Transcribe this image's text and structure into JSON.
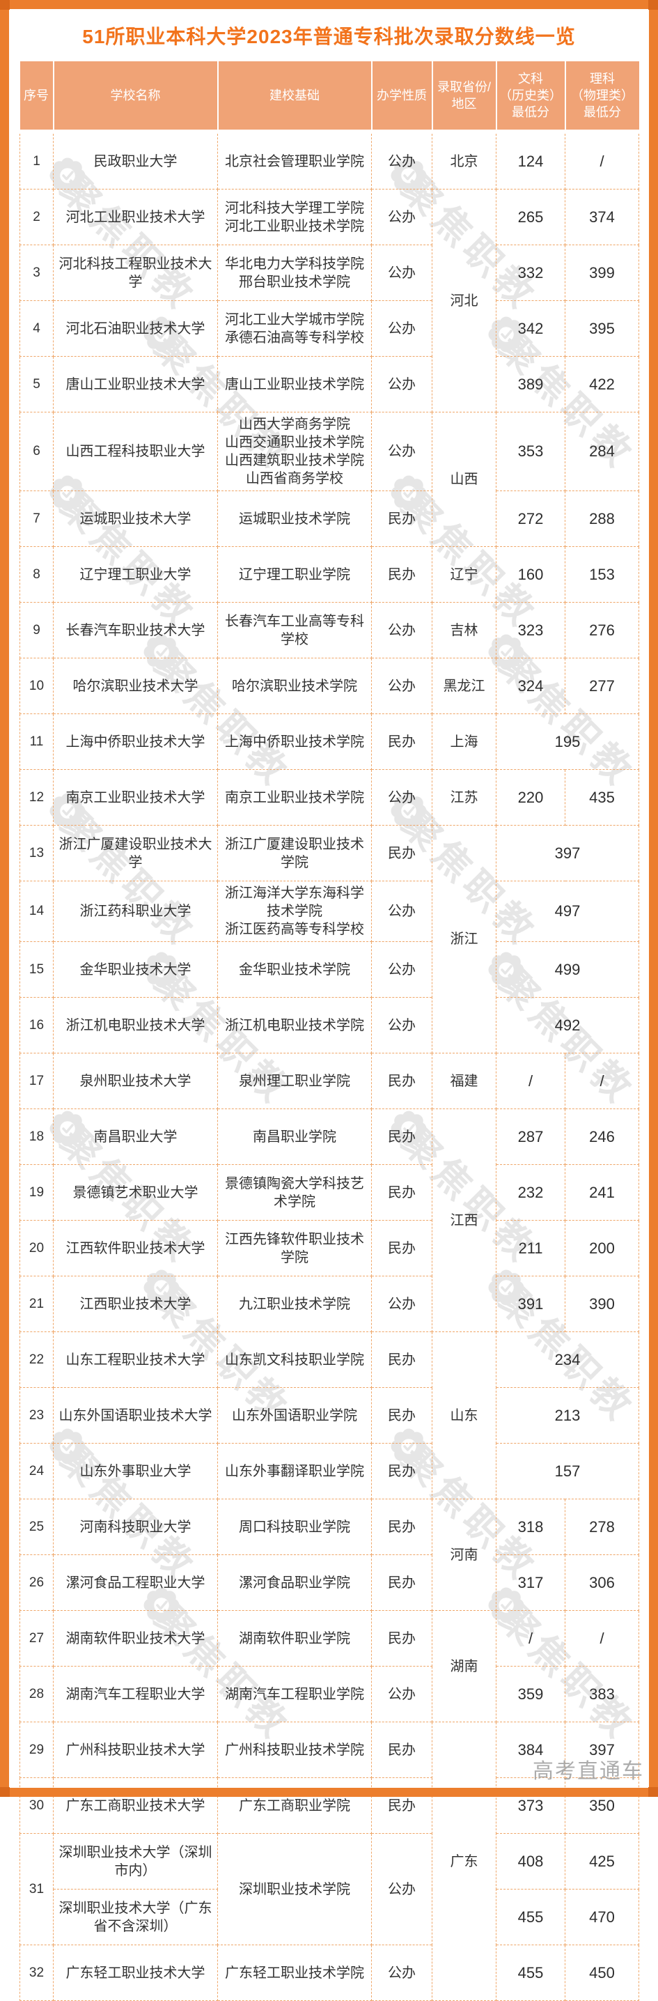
{
  "page": {
    "title": "51所职业本科大学2023年普通专科批次录取分数线一览",
    "watermark_text": "聚焦职教",
    "corner_watermark": "高考直通车"
  },
  "colors": {
    "frame_orange": "#ec7e2d",
    "header_bg": "#f0a376",
    "title_orange": "#f2731c",
    "dashed_border": "#efa668",
    "body_text": "#333333",
    "watermark_gray": "#c9c9c9"
  },
  "table": {
    "headers": [
      "序号",
      "学校名称",
      "建校基础",
      "办学性质",
      "录取省份/\n地区",
      "文科\n（历史类）\n最低分",
      "理科\n（物理类）\n最低分"
    ],
    "rows": [
      [
        {
          "k": "no",
          "t": "1"
        },
        {
          "k": "name",
          "t": "民政职业大学"
        },
        {
          "k": "base",
          "t": "北京社会管理职业学院"
        },
        {
          "k": "type",
          "t": "公办"
        },
        {
          "k": "prov",
          "t": "北京"
        },
        {
          "k": "wen",
          "t": "124"
        },
        {
          "k": "li",
          "t": "/"
        }
      ],
      [
        {
          "k": "no",
          "t": "2"
        },
        {
          "k": "name",
          "t": "河北工业职业技术大学"
        },
        {
          "k": "base",
          "t": "河北科技大学理工学院\n河北工业职业技术学院"
        },
        {
          "k": "type",
          "t": "公办"
        },
        {
          "k": "prov",
          "t": "河北",
          "rs": 4
        },
        {
          "k": "wen",
          "t": "265"
        },
        {
          "k": "li",
          "t": "374"
        }
      ],
      [
        {
          "k": "no",
          "t": "3"
        },
        {
          "k": "name",
          "t": "河北科技工程职业技术大学"
        },
        {
          "k": "base",
          "t": "华北电力大学科技学院\n邢台职业技术学院"
        },
        {
          "k": "type",
          "t": "公办"
        },
        {
          "k": "wen",
          "t": "332"
        },
        {
          "k": "li",
          "t": "399"
        }
      ],
      [
        {
          "k": "no",
          "t": "4"
        },
        {
          "k": "name",
          "t": "河北石油职业技术大学"
        },
        {
          "k": "base",
          "t": "河北工业大学城市学院\n承德石油高等专科学校"
        },
        {
          "k": "type",
          "t": "公办"
        },
        {
          "k": "wen",
          "t": "342"
        },
        {
          "k": "li",
          "t": "395"
        }
      ],
      [
        {
          "k": "no",
          "t": "5"
        },
        {
          "k": "name",
          "t": "唐山工业职业技术大学"
        },
        {
          "k": "base",
          "t": "唐山工业职业技术学院"
        },
        {
          "k": "type",
          "t": "公办"
        },
        {
          "k": "wen",
          "t": "389"
        },
        {
          "k": "li",
          "t": "422"
        }
      ],
      [
        {
          "k": "no",
          "t": "6"
        },
        {
          "k": "name",
          "t": "山西工程科技职业大学"
        },
        {
          "k": "base",
          "t": "山西大学商务学院\n山西交通职业技术学院\n山西建筑职业技术学院\n山西省商务学校"
        },
        {
          "k": "type",
          "t": "公办"
        },
        {
          "k": "prov",
          "t": "山西",
          "rs": 2
        },
        {
          "k": "wen",
          "t": "353"
        },
        {
          "k": "li",
          "t": "284"
        }
      ],
      [
        {
          "k": "no",
          "t": "7"
        },
        {
          "k": "name",
          "t": "运城职业技术大学"
        },
        {
          "k": "base",
          "t": "运城职业技术学院"
        },
        {
          "k": "type",
          "t": "民办"
        },
        {
          "k": "wen",
          "t": "272"
        },
        {
          "k": "li",
          "t": "288"
        }
      ],
      [
        {
          "k": "no",
          "t": "8"
        },
        {
          "k": "name",
          "t": "辽宁理工职业大学"
        },
        {
          "k": "base",
          "t": "辽宁理工职业学院"
        },
        {
          "k": "type",
          "t": "民办"
        },
        {
          "k": "prov",
          "t": "辽宁"
        },
        {
          "k": "wen",
          "t": "160"
        },
        {
          "k": "li",
          "t": "153"
        }
      ],
      [
        {
          "k": "no",
          "t": "9"
        },
        {
          "k": "name",
          "t": "长春汽车职业技术大学"
        },
        {
          "k": "base",
          "t": "长春汽车工业高等专科学校"
        },
        {
          "k": "type",
          "t": "公办"
        },
        {
          "k": "prov",
          "t": "吉林"
        },
        {
          "k": "wen",
          "t": "323"
        },
        {
          "k": "li",
          "t": "276"
        }
      ],
      [
        {
          "k": "no",
          "t": "10"
        },
        {
          "k": "name",
          "t": "哈尔滨职业技术大学"
        },
        {
          "k": "base",
          "t": "哈尔滨职业技术学院"
        },
        {
          "k": "type",
          "t": "公办"
        },
        {
          "k": "prov",
          "t": "黑龙江"
        },
        {
          "k": "wen",
          "t": "324"
        },
        {
          "k": "li",
          "t": "277"
        }
      ],
      [
        {
          "k": "no",
          "t": "11"
        },
        {
          "k": "name",
          "t": "上海中侨职业技术大学"
        },
        {
          "k": "base",
          "t": "上海中侨职业技术学院"
        },
        {
          "k": "type",
          "t": "民办"
        },
        {
          "k": "prov",
          "t": "上海"
        },
        {
          "k": "score",
          "t": "195",
          "cs": 2
        }
      ],
      [
        {
          "k": "no",
          "t": "12"
        },
        {
          "k": "name",
          "t": "南京工业职业技术大学"
        },
        {
          "k": "base",
          "t": "南京工业职业技术学院"
        },
        {
          "k": "type",
          "t": "公办"
        },
        {
          "k": "prov",
          "t": "江苏"
        },
        {
          "k": "wen",
          "t": "220"
        },
        {
          "k": "li",
          "t": "435"
        }
      ],
      [
        {
          "k": "no",
          "t": "13"
        },
        {
          "k": "name",
          "t": "浙江广厦建设职业技术大学"
        },
        {
          "k": "base",
          "t": "浙江广厦建设职业技术学院"
        },
        {
          "k": "type",
          "t": "民办"
        },
        {
          "k": "prov",
          "t": "浙江",
          "rs": 4
        },
        {
          "k": "score",
          "t": "397",
          "cs": 2
        }
      ],
      [
        {
          "k": "no",
          "t": "14"
        },
        {
          "k": "name",
          "t": "浙江药科职业大学"
        },
        {
          "k": "base",
          "t": "浙江海洋大学东海科学技术学院\n浙江医药高等专科学校"
        },
        {
          "k": "type",
          "t": "公办"
        },
        {
          "k": "score",
          "t": "497",
          "cs": 2
        }
      ],
      [
        {
          "k": "no",
          "t": "15"
        },
        {
          "k": "name",
          "t": "金华职业技术大学"
        },
        {
          "k": "base",
          "t": "金华职业技术学院"
        },
        {
          "k": "type",
          "t": "公办"
        },
        {
          "k": "score",
          "t": "499",
          "cs": 2
        }
      ],
      [
        {
          "k": "no",
          "t": "16"
        },
        {
          "k": "name",
          "t": "浙江机电职业技术大学"
        },
        {
          "k": "base",
          "t": "浙江机电职业技术学院"
        },
        {
          "k": "type",
          "t": "公办"
        },
        {
          "k": "score",
          "t": "492",
          "cs": 2
        }
      ],
      [
        {
          "k": "no",
          "t": "17"
        },
        {
          "k": "name",
          "t": "泉州职业技术大学"
        },
        {
          "k": "base",
          "t": "泉州理工职业学院"
        },
        {
          "k": "type",
          "t": "民办"
        },
        {
          "k": "prov",
          "t": "福建"
        },
        {
          "k": "wen",
          "t": "/"
        },
        {
          "k": "li",
          "t": "/"
        }
      ],
      [
        {
          "k": "no",
          "t": "18"
        },
        {
          "k": "name",
          "t": "南昌职业大学"
        },
        {
          "k": "base",
          "t": "南昌职业学院"
        },
        {
          "k": "type",
          "t": "民办"
        },
        {
          "k": "prov",
          "t": "江西",
          "rs": 4
        },
        {
          "k": "wen",
          "t": "287"
        },
        {
          "k": "li",
          "t": "246"
        }
      ],
      [
        {
          "k": "no",
          "t": "19"
        },
        {
          "k": "name",
          "t": "景德镇艺术职业大学"
        },
        {
          "k": "base",
          "t": "景德镇陶瓷大学科技艺术学院"
        },
        {
          "k": "type",
          "t": "民办"
        },
        {
          "k": "wen",
          "t": "232"
        },
        {
          "k": "li",
          "t": "241"
        }
      ],
      [
        {
          "k": "no",
          "t": "20"
        },
        {
          "k": "name",
          "t": "江西软件职业技术大学"
        },
        {
          "k": "base",
          "t": "江西先锋软件职业技术学院"
        },
        {
          "k": "type",
          "t": "民办"
        },
        {
          "k": "wen",
          "t": "211"
        },
        {
          "k": "li",
          "t": "200"
        }
      ],
      [
        {
          "k": "no",
          "t": "21"
        },
        {
          "k": "name",
          "t": "江西职业技术大学"
        },
        {
          "k": "base",
          "t": "九江职业技术学院"
        },
        {
          "k": "type",
          "t": "公办"
        },
        {
          "k": "wen",
          "t": "391"
        },
        {
          "k": "li",
          "t": "390"
        }
      ],
      [
        {
          "k": "no",
          "t": "22"
        },
        {
          "k": "name",
          "t": "山东工程职业技术大学"
        },
        {
          "k": "base",
          "t": "山东凯文科技职业学院"
        },
        {
          "k": "type",
          "t": "民办"
        },
        {
          "k": "prov",
          "t": "山东",
          "rs": 3
        },
        {
          "k": "score",
          "t": "234",
          "cs": 2
        }
      ],
      [
        {
          "k": "no",
          "t": "23"
        },
        {
          "k": "name",
          "t": "山东外国语职业技术大学"
        },
        {
          "k": "base",
          "t": "山东外国语职业学院"
        },
        {
          "k": "type",
          "t": "民办"
        },
        {
          "k": "score",
          "t": "213",
          "cs": 2
        }
      ],
      [
        {
          "k": "no",
          "t": "24"
        },
        {
          "k": "name",
          "t": "山东外事职业大学"
        },
        {
          "k": "base",
          "t": "山东外事翻译职业学院"
        },
        {
          "k": "type",
          "t": "民办"
        },
        {
          "k": "score",
          "t": "157",
          "cs": 2
        }
      ],
      [
        {
          "k": "no",
          "t": "25"
        },
        {
          "k": "name",
          "t": "河南科技职业大学"
        },
        {
          "k": "base",
          "t": "周口科技职业学院"
        },
        {
          "k": "type",
          "t": "民办"
        },
        {
          "k": "prov",
          "t": "河南",
          "rs": 2
        },
        {
          "k": "wen",
          "t": "318"
        },
        {
          "k": "li",
          "t": "278"
        }
      ],
      [
        {
          "k": "no",
          "t": "26"
        },
        {
          "k": "name",
          "t": "漯河食品工程职业大学"
        },
        {
          "k": "base",
          "t": "漯河食品职业学院"
        },
        {
          "k": "type",
          "t": "民办"
        },
        {
          "k": "wen",
          "t": "317"
        },
        {
          "k": "li",
          "t": "306"
        }
      ],
      [
        {
          "k": "no",
          "t": "27"
        },
        {
          "k": "name",
          "t": "湖南软件职业技术大学"
        },
        {
          "k": "base",
          "t": "湖南软件职业学院"
        },
        {
          "k": "type",
          "t": "民办"
        },
        {
          "k": "prov",
          "t": "湖南",
          "rs": 2
        },
        {
          "k": "wen",
          "t": "/"
        },
        {
          "k": "li",
          "t": "/"
        }
      ],
      [
        {
          "k": "no",
          "t": "28"
        },
        {
          "k": "name",
          "t": "湖南汽车工程职业大学"
        },
        {
          "k": "base",
          "t": "湖南汽车工程职业学院"
        },
        {
          "k": "type",
          "t": "公办"
        },
        {
          "k": "wen",
          "t": "359"
        },
        {
          "k": "li",
          "t": "383"
        }
      ],
      [
        {
          "k": "no",
          "t": "29"
        },
        {
          "k": "name",
          "t": "广州科技职业技术大学"
        },
        {
          "k": "base",
          "t": "广州科技职业技术学院"
        },
        {
          "k": "type",
          "t": "民办"
        },
        {
          "k": "prov",
          "t": "广东",
          "rs": 5
        },
        {
          "k": "wen",
          "t": "384"
        },
        {
          "k": "li",
          "t": "397"
        }
      ],
      [
        {
          "k": "no",
          "t": "30"
        },
        {
          "k": "name",
          "t": "广东工商职业技术大学"
        },
        {
          "k": "base",
          "t": "广东工商职业学院"
        },
        {
          "k": "type",
          "t": "民办"
        },
        {
          "k": "wen",
          "t": "373"
        },
        {
          "k": "li",
          "t": "350"
        }
      ],
      [
        {
          "k": "no",
          "t": "31",
          "rs": 2
        },
        {
          "k": "name",
          "t": "深圳职业技术大学（深圳市内）"
        },
        {
          "k": "base",
          "t": "深圳职业技术学院",
          "rs": 2
        },
        {
          "k": "type",
          "t": "公办",
          "rs": 2
        },
        {
          "k": "wen",
          "t": "408"
        },
        {
          "k": "li",
          "t": "425"
        }
      ],
      [
        {
          "k": "name",
          "t": "深圳职业技术大学（广东省不含深圳）"
        },
        {
          "k": "wen",
          "t": "455"
        },
        {
          "k": "li",
          "t": "470"
        }
      ],
      [
        {
          "k": "no",
          "t": "32"
        },
        {
          "k": "name",
          "t": "广东轻工职业技术大学"
        },
        {
          "k": "base",
          "t": "广东轻工职业技术学院"
        },
        {
          "k": "type",
          "t": "公办"
        },
        {
          "k": "wen",
          "t": "455"
        },
        {
          "k": "li",
          "t": "450"
        }
      ]
    ]
  }
}
